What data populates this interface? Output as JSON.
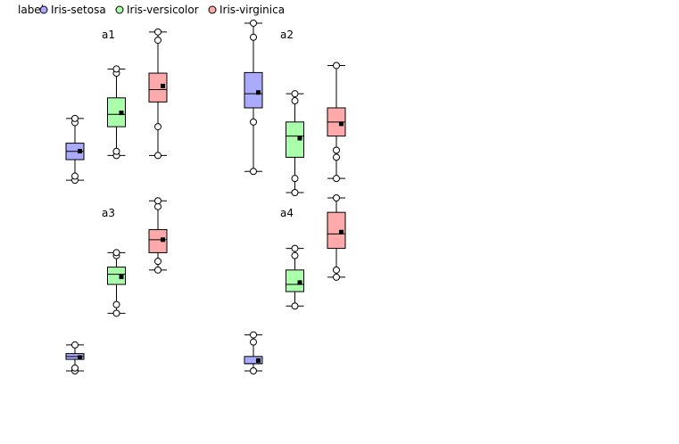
{
  "legend": {
    "title": "label",
    "items": [
      {
        "name": "Iris-setosa",
        "color": "#aaaaff"
      },
      {
        "name": "Iris-versicolor",
        "color": "#aaffaa"
      },
      {
        "name": "Iris-virginica",
        "color": "#ffaaaa"
      }
    ]
  },
  "chart_data": {
    "type": "boxplot",
    "legend_position": "top-left",
    "grid": false,
    "axes_visible": false,
    "panels": [
      {
        "title": "a1",
        "ylim": [
          4.0,
          8.2
        ],
        "series": [
          {
            "name": "Iris-setosa",
            "min": 4.3,
            "q1": 4.8,
            "median": 5.0,
            "q3": 5.2,
            "max": 5.8,
            "mean": 5.006,
            "outliers": [
              4.3,
              4.4,
              5.7,
              5.8
            ]
          },
          {
            "name": "Iris-versicolor",
            "min": 4.9,
            "q1": 5.6,
            "median": 5.9,
            "q3": 6.3,
            "max": 7.0,
            "mean": 5.936,
            "outliers": [
              4.9,
              5.0,
              6.9,
              7.0
            ]
          },
          {
            "name": "Iris-virginica",
            "min": 4.9,
            "q1": 6.2,
            "median": 6.5,
            "q3": 6.9,
            "max": 7.9,
            "mean": 6.588,
            "outliers": [
              4.9,
              5.6,
              7.7,
              7.9
            ]
          }
        ]
      },
      {
        "title": "a2",
        "ylim": [
          2.0,
          4.45
        ],
        "series": [
          {
            "name": "Iris-setosa",
            "min": 2.3,
            "q1": 3.2,
            "median": 3.4,
            "q3": 3.7,
            "max": 4.4,
            "mean": 3.418,
            "outliers": [
              2.3,
              3.0,
              4.2,
              4.4
            ]
          },
          {
            "name": "Iris-versicolor",
            "min": 2.0,
            "q1": 2.5,
            "median": 2.8,
            "q3": 3.0,
            "max": 3.4,
            "mean": 2.77,
            "outliers": [
              2.0,
              2.2,
              3.3,
              3.4
            ]
          },
          {
            "name": "Iris-virginica",
            "min": 2.2,
            "q1": 2.8,
            "median": 3.0,
            "q3": 3.2,
            "max": 3.8,
            "mean": 2.974,
            "outliers": [
              2.2,
              2.5,
              2.6,
              3.8
            ]
          }
        ]
      },
      {
        "title": "a3",
        "ylim": [
          1.0,
          7.0
        ],
        "series": [
          {
            "name": "Iris-setosa",
            "min": 1.0,
            "q1": 1.4,
            "median": 1.5,
            "q3": 1.6,
            "max": 1.9,
            "mean": 1.464,
            "outliers": [
              1.0,
              1.1,
              1.9
            ]
          },
          {
            "name": "Iris-versicolor",
            "min": 3.0,
            "q1": 4.0,
            "median": 4.35,
            "q3": 4.6,
            "max": 5.1,
            "mean": 4.26,
            "outliers": [
              3.0,
              3.3,
              5.0,
              5.1
            ]
          },
          {
            "name": "Iris-virginica",
            "min": 4.5,
            "q1": 5.1,
            "median": 5.55,
            "q3": 5.9,
            "max": 6.9,
            "mean": 5.552,
            "outliers": [
              4.5,
              4.8,
              6.7,
              6.9
            ]
          }
        ]
      },
      {
        "title": "a4",
        "ylim": [
          0.1,
          2.5
        ],
        "series": [
          {
            "name": "Iris-setosa",
            "min": 0.1,
            "q1": 0.2,
            "median": 0.2,
            "q3": 0.3,
            "max": 0.6,
            "mean": 0.244,
            "outliers": [
              0.1,
              0.5,
              0.6
            ]
          },
          {
            "name": "Iris-versicolor",
            "min": 1.0,
            "q1": 1.2,
            "median": 1.3,
            "q3": 1.5,
            "max": 1.8,
            "mean": 1.326,
            "outliers": [
              1.0,
              1.7,
              1.8
            ]
          },
          {
            "name": "Iris-virginica",
            "min": 1.4,
            "q1": 1.8,
            "median": 2.0,
            "q3": 2.3,
            "max": 2.5,
            "mean": 2.026,
            "outliers": [
              1.4,
              1.5,
              2.5
            ]
          }
        ]
      }
    ]
  }
}
